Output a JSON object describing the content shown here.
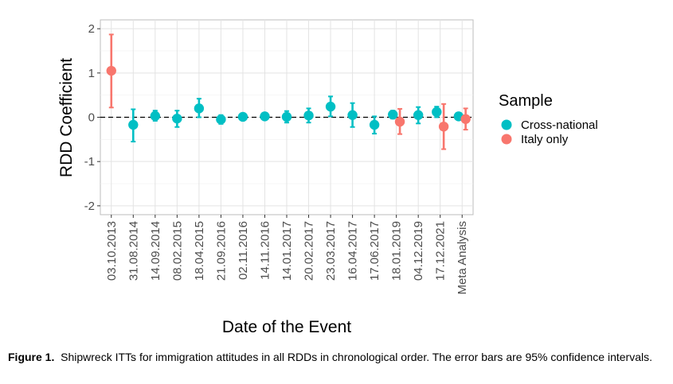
{
  "chart_data": {
    "type": "scatter",
    "subtype": "point-range",
    "xlabel": "Date of the Event",
    "ylabel": "RDD Coefficient",
    "ylim": [
      -2.2,
      2.2
    ],
    "yticks": [
      -2,
      -1,
      0,
      1,
      2
    ],
    "categories": [
      "03.10.2013",
      "31.08.2014",
      "14.09.2014",
      "08.02.2015",
      "18.04.2015",
      "21.09.2016",
      "02.11.2016",
      "14.11.2016",
      "14.01.2017",
      "20.02.2017",
      "23.03.2017",
      "16.04.2017",
      "17.06.2017",
      "18.01.2019",
      "04.12.2019",
      "17.12.2021",
      "Meta Analysis"
    ],
    "reference_line": {
      "y": 0,
      "style": "dashed"
    },
    "grid": true,
    "legend": {
      "title": "Sample",
      "position": "right"
    },
    "series": [
      {
        "name": "Cross-national",
        "color": "#00BFC4",
        "points": [
          {
            "x": "31.08.2014",
            "y": -0.17,
            "lower": -0.55,
            "upper": 0.18
          },
          {
            "x": "14.09.2014",
            "y": 0.03,
            "lower": -0.08,
            "upper": 0.15
          },
          {
            "x": "08.02.2015",
            "y": -0.03,
            "lower": -0.22,
            "upper": 0.15
          },
          {
            "x": "18.04.2015",
            "y": 0.2,
            "lower": 0.0,
            "upper": 0.42
          },
          {
            "x": "21.09.2016",
            "y": -0.05,
            "lower": -0.15,
            "upper": 0.05
          },
          {
            "x": "02.11.2016",
            "y": 0.01,
            "lower": -0.05,
            "upper": 0.07
          },
          {
            "x": "14.11.2016",
            "y": 0.02,
            "lower": -0.03,
            "upper": 0.07
          },
          {
            "x": "14.01.2017",
            "y": 0.01,
            "lower": -0.12,
            "upper": 0.14
          },
          {
            "x": "20.02.2017",
            "y": 0.04,
            "lower": -0.12,
            "upper": 0.2
          },
          {
            "x": "23.03.2017",
            "y": 0.24,
            "lower": 0.02,
            "upper": 0.47
          },
          {
            "x": "16.04.2017",
            "y": 0.05,
            "lower": -0.22,
            "upper": 0.32
          },
          {
            "x": "17.06.2017",
            "y": -0.17,
            "lower": -0.37,
            "upper": 0.02
          },
          {
            "x": "18.01.2019",
            "y": 0.06,
            "lower": -0.03,
            "upper": 0.15
          },
          {
            "x": "04.12.2019",
            "y": 0.05,
            "lower": -0.14,
            "upper": 0.23
          },
          {
            "x": "17.12.2021",
            "y": 0.12,
            "lower": 0.0,
            "upper": 0.24
          },
          {
            "x": "Meta Analysis",
            "y": 0.02,
            "lower": -0.03,
            "upper": 0.07
          }
        ]
      },
      {
        "name": "Italy only",
        "color": "#F8766D",
        "points": [
          {
            "x": "03.10.2013",
            "y": 1.05,
            "lower": 0.22,
            "upper": 1.87
          },
          {
            "x": "18.01.2019",
            "y": -0.1,
            "lower": -0.38,
            "upper": 0.19
          },
          {
            "x": "17.12.2021",
            "y": -0.21,
            "lower": -0.72,
            "upper": 0.3
          },
          {
            "x": "Meta Analysis",
            "y": -0.04,
            "lower": -0.28,
            "upper": 0.2
          }
        ]
      }
    ]
  },
  "caption": {
    "label": "Figure 1.",
    "text": "Shipwreck ITTs for immigration attitudes in all RDDs in chronological order. The error bars are 95% confidence intervals."
  }
}
